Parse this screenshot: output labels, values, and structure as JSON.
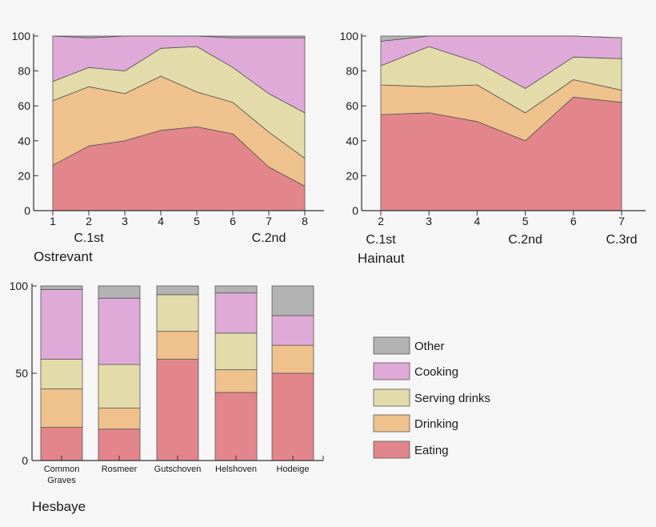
{
  "colors": {
    "Other": "#b3b3b3",
    "Cooking": "#dfaad8",
    "Serving drinks": "#e3dcaa",
    "Drinking": "#efc18c",
    "Eating": "#e2868b"
  },
  "legend": {
    "items": [
      "Other",
      "Cooking",
      "Serving drinks",
      "Drinking",
      "Eating"
    ]
  },
  "chart_data": [
    {
      "type": "area",
      "label": "Ostrevant",
      "x": [
        1,
        2,
        3,
        4,
        5,
        6,
        7,
        8
      ],
      "x_tick_labels": [
        "1",
        "2",
        "3",
        "4",
        "5",
        "6",
        "7",
        "8"
      ],
      "period_labels": [
        {
          "at": 2,
          "text": "C.1st"
        },
        {
          "at": 7,
          "text": "C.2nd"
        }
      ],
      "ylim": [
        0,
        100
      ],
      "y_ticks": [
        0,
        20,
        40,
        60,
        80,
        100
      ],
      "stacked": true,
      "series": [
        {
          "name": "Eating",
          "values": [
            26,
            37,
            40,
            46,
            48,
            44,
            25,
            14
          ]
        },
        {
          "name": "Drinking",
          "values": [
            37,
            34,
            27,
            31,
            20,
            18,
            20,
            16
          ]
        },
        {
          "name": "Serving drinks",
          "values": [
            11,
            11,
            13,
            16,
            26,
            20,
            22,
            26
          ]
        },
        {
          "name": "Cooking",
          "values": [
            26,
            17,
            20,
            7,
            6,
            17,
            32,
            43
          ]
        },
        {
          "name": "Other",
          "values": [
            0,
            1,
            0,
            0,
            0,
            1,
            1,
            1
          ]
        }
      ]
    },
    {
      "type": "area",
      "label": "Hainaut",
      "x": [
        2,
        3,
        4,
        5,
        6,
        7
      ],
      "x_tick_labels": [
        "2",
        "3",
        "4",
        "5",
        "6",
        "7"
      ],
      "period_labels": [
        {
          "at": 2,
          "text": "C.1st"
        },
        {
          "at": 5,
          "text": "C.2nd"
        },
        {
          "at": 7,
          "text": "C.3rd"
        }
      ],
      "ylim": [
        0,
        100
      ],
      "y_ticks": [
        0,
        20,
        40,
        60,
        80,
        100
      ],
      "stacked": true,
      "series": [
        {
          "name": "Eating",
          "values": [
            55,
            56,
            51,
            40,
            65,
            62
          ]
        },
        {
          "name": "Drinking",
          "values": [
            17,
            15,
            21,
            16,
            10,
            7
          ]
        },
        {
          "name": "Serving drinks",
          "values": [
            11,
            23,
            13,
            14,
            13,
            18
          ]
        },
        {
          "name": "Cooking",
          "values": [
            14,
            6,
            15,
            30,
            12,
            12
          ]
        },
        {
          "name": "Other",
          "values": [
            3,
            0,
            0,
            0,
            0,
            0
          ]
        }
      ]
    },
    {
      "type": "bar",
      "label": "Hesbaye",
      "categories": [
        "Common Graves",
        "Rosmeer",
        "Gutschoven",
        "Helshoven",
        "Hodeige"
      ],
      "ylim": [
        0,
        100
      ],
      "y_ticks": [
        0,
        50,
        100
      ],
      "stacked": true,
      "series": [
        {
          "name": "Eating",
          "values": [
            19,
            18,
            58,
            39,
            50
          ]
        },
        {
          "name": "Drinking",
          "values": [
            22,
            12,
            16,
            13,
            16
          ]
        },
        {
          "name": "Serving drinks",
          "values": [
            17,
            25,
            21,
            21,
            0
          ]
        },
        {
          "name": "Cooking",
          "values": [
            40,
            38,
            0,
            23,
            17
          ]
        },
        {
          "name": "Other",
          "values": [
            2,
            7,
            5,
            4,
            17
          ]
        }
      ]
    }
  ]
}
